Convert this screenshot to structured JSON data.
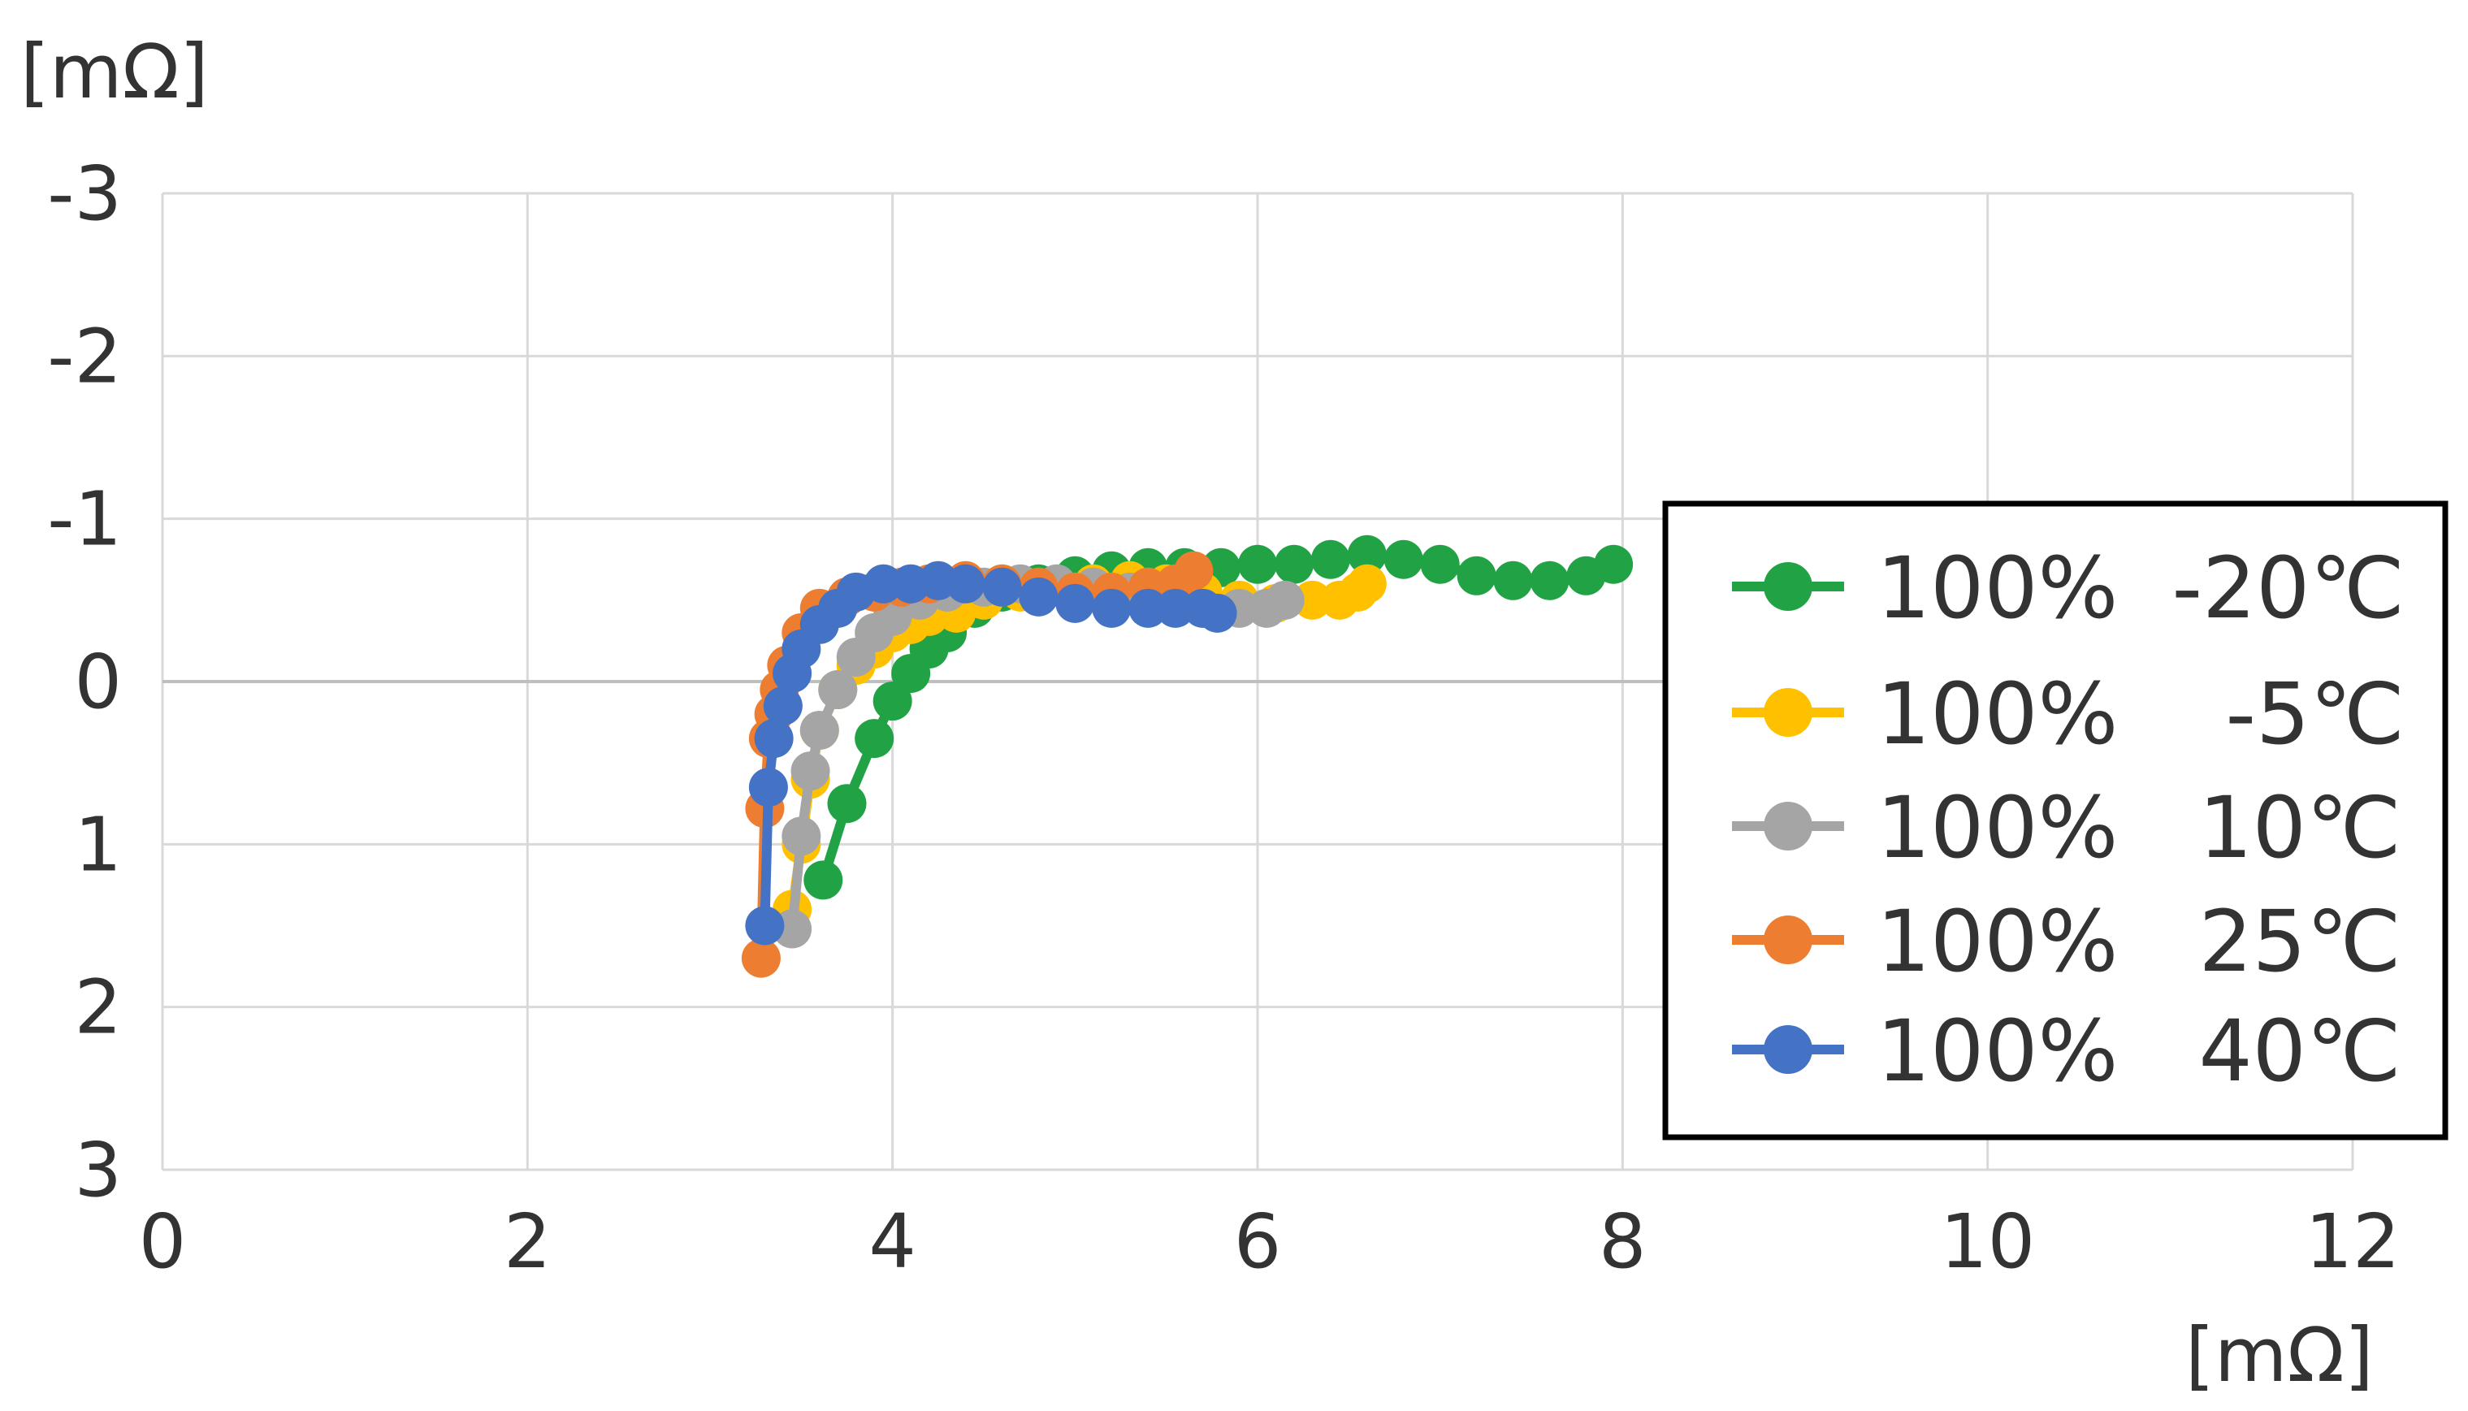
{
  "chart_data": {
    "type": "scatter",
    "title": "",
    "xlabel": "[mΩ]",
    "ylabel": "[mΩ]",
    "xlim": [
      0,
      12
    ],
    "ylim": [
      3,
      -3
    ],
    "y_axis_inverted": true,
    "x_ticks": [
      "0",
      "2",
      "4",
      "6",
      "8",
      "10",
      "12"
    ],
    "y_ticks": [
      "-3",
      "-2",
      "-1",
      "0",
      "1",
      "2",
      "3"
    ],
    "grid": true,
    "legend_position": "right",
    "series": [
      {
        "name": "100%  -20℃",
        "color": "#21a345",
        "x": [
          3.62,
          3.75,
          3.9,
          4.0,
          4.1,
          4.2,
          4.3,
          4.45,
          4.6,
          4.8,
          5.0,
          5.2,
          5.4,
          5.6,
          5.8,
          6.0,
          6.2,
          6.4,
          6.6,
          6.8,
          7.0,
          7.2,
          7.4,
          7.6,
          7.8,
          7.95
        ],
        "y": [
          1.22,
          0.75,
          0.35,
          0.12,
          -0.05,
          -0.2,
          -0.3,
          -0.45,
          -0.55,
          -0.6,
          -0.65,
          -0.68,
          -0.7,
          -0.7,
          -0.7,
          -0.72,
          -0.72,
          -0.75,
          -0.78,
          -0.75,
          -0.72,
          -0.65,
          -0.62,
          -0.62,
          -0.65,
          -0.72
        ]
      },
      {
        "name": "100%    -5℃",
        "color": "#ffc000",
        "x": [
          3.45,
          3.5,
          3.55,
          3.6,
          3.7,
          3.8,
          3.9,
          4.0,
          4.1,
          4.2,
          4.35,
          4.5,
          4.7,
          4.9,
          5.1,
          5.3,
          5.5,
          5.7,
          5.9,
          6.1,
          6.3,
          6.45,
          6.55,
          6.6
        ],
        "y": [
          1.4,
          1.0,
          0.6,
          0.3,
          0.05,
          -0.1,
          -0.2,
          -0.3,
          -0.35,
          -0.4,
          -0.42,
          -0.5,
          -0.55,
          -0.58,
          -0.6,
          -0.62,
          -0.6,
          -0.55,
          -0.5,
          -0.48,
          -0.5,
          -0.5,
          -0.55,
          -0.6
        ]
      },
      {
        "name": "100%   10℃",
        "color": "#a5a5a5",
        "x": [
          3.45,
          3.5,
          3.55,
          3.6,
          3.7,
          3.8,
          3.9,
          4.0,
          4.15,
          4.3,
          4.5,
          4.7,
          4.9,
          5.1,
          5.3,
          5.5,
          5.7,
          5.9,
          6.05,
          6.15
        ],
        "y": [
          1.52,
          0.95,
          0.55,
          0.3,
          0.05,
          -0.15,
          -0.3,
          -0.4,
          -0.5,
          -0.55,
          -0.58,
          -0.6,
          -0.6,
          -0.58,
          -0.55,
          -0.5,
          -0.45,
          -0.45,
          -0.45,
          -0.5
        ]
      },
      {
        "name": "100%   25℃",
        "color": "#ed7d31",
        "x": [
          3.28,
          3.3,
          3.32,
          3.35,
          3.38,
          3.42,
          3.5,
          3.6,
          3.75,
          3.9,
          4.05,
          4.2,
          4.4,
          4.6,
          4.8,
          5.0,
          5.2,
          5.4,
          5.55,
          5.65
        ],
        "y": [
          1.7,
          0.78,
          0.35,
          0.2,
          0.05,
          -0.1,
          -0.3,
          -0.45,
          -0.52,
          -0.55,
          -0.58,
          -0.6,
          -0.62,
          -0.6,
          -0.58,
          -0.55,
          -0.55,
          -0.58,
          -0.6,
          -0.68
        ]
      },
      {
        "name": "100%   40℃",
        "color": "#4472c4",
        "x": [
          3.3,
          3.32,
          3.35,
          3.4,
          3.45,
          3.5,
          3.6,
          3.7,
          3.8,
          3.95,
          4.1,
          4.25,
          4.4,
          4.6,
          4.8,
          5.0,
          5.2,
          5.4,
          5.55,
          5.7,
          5.78
        ],
        "y": [
          1.5,
          0.65,
          0.35,
          0.15,
          -0.05,
          -0.2,
          -0.35,
          -0.45,
          -0.55,
          -0.6,
          -0.6,
          -0.62,
          -0.6,
          -0.58,
          -0.52,
          -0.48,
          -0.45,
          -0.45,
          -0.45,
          -0.45,
          -0.42
        ]
      }
    ]
  }
}
